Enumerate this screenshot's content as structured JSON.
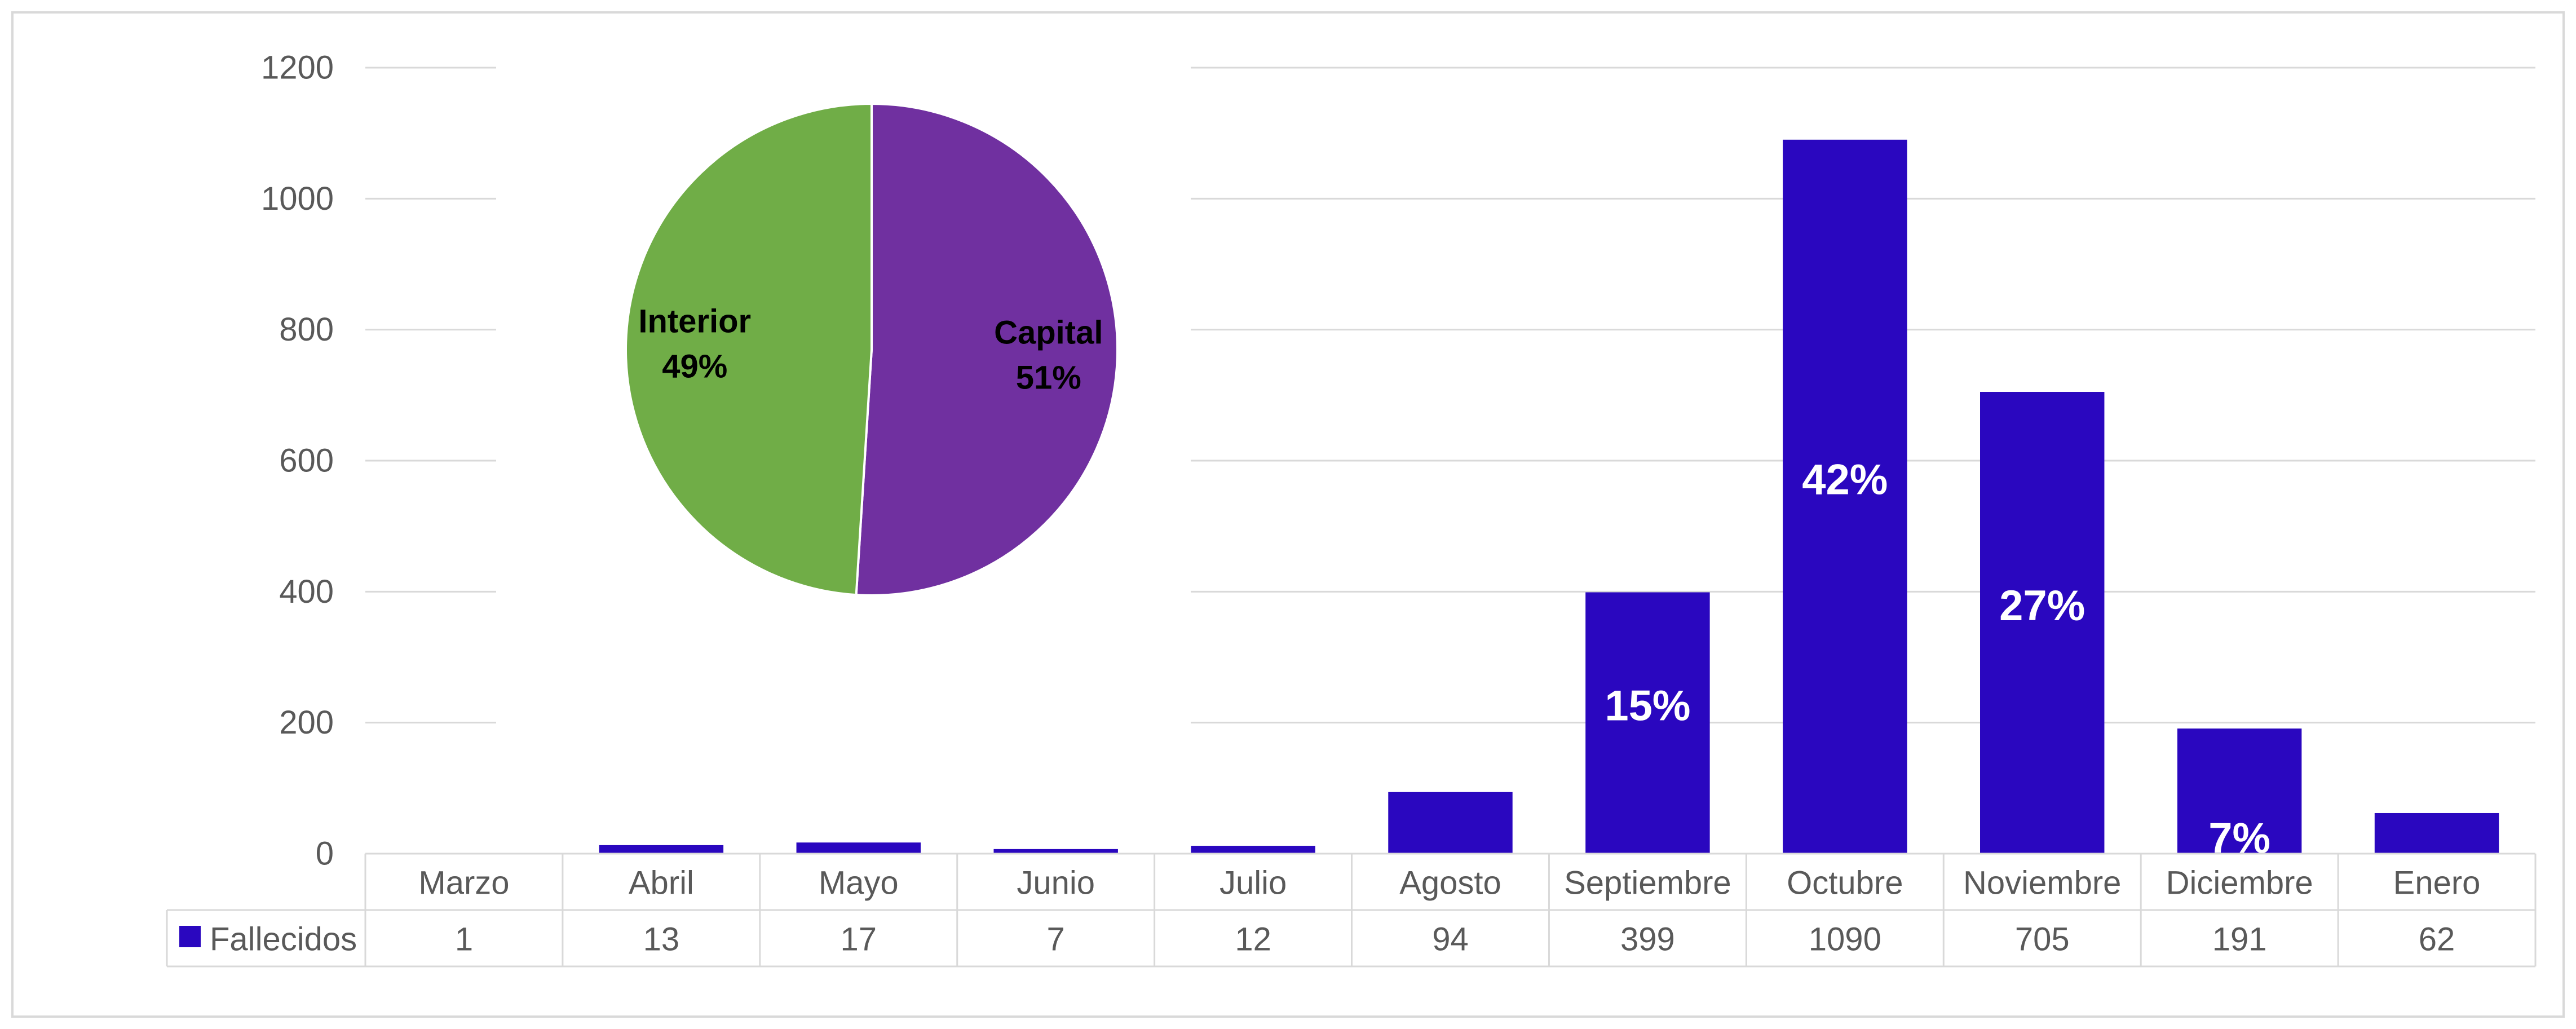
{
  "chart_data": [
    {
      "type": "bar",
      "categories": [
        "Marzo",
        "Abril",
        "Mayo",
        "Junio",
        "Julio",
        "Agosto",
        "Septiembre",
        "Octubre",
        "Noviembre",
        "Diciembre",
        "Enero"
      ],
      "series": [
        {
          "name": "Fallecidos",
          "values": [
            1,
            13,
            17,
            7,
            12,
            94,
            399,
            1090,
            705,
            191,
            62
          ],
          "color": "#2a07bf"
        }
      ],
      "bar_labels": [
        "",
        "",
        "",
        "",
        "",
        "",
        "15%",
        "42%",
        "27%",
        "7%",
        ""
      ],
      "ylim": [
        0,
        1200
      ],
      "yticks": [
        0,
        200,
        400,
        600,
        800,
        1000,
        1200
      ],
      "grid": true,
      "data_table": true
    },
    {
      "type": "pie",
      "slices": [
        {
          "label": "Capital",
          "value": 51,
          "display": "51%",
          "color": "#7030a0"
        },
        {
          "label": "Interior",
          "value": 49,
          "display": "49%",
          "color": "#70ad47"
        }
      ]
    }
  ]
}
